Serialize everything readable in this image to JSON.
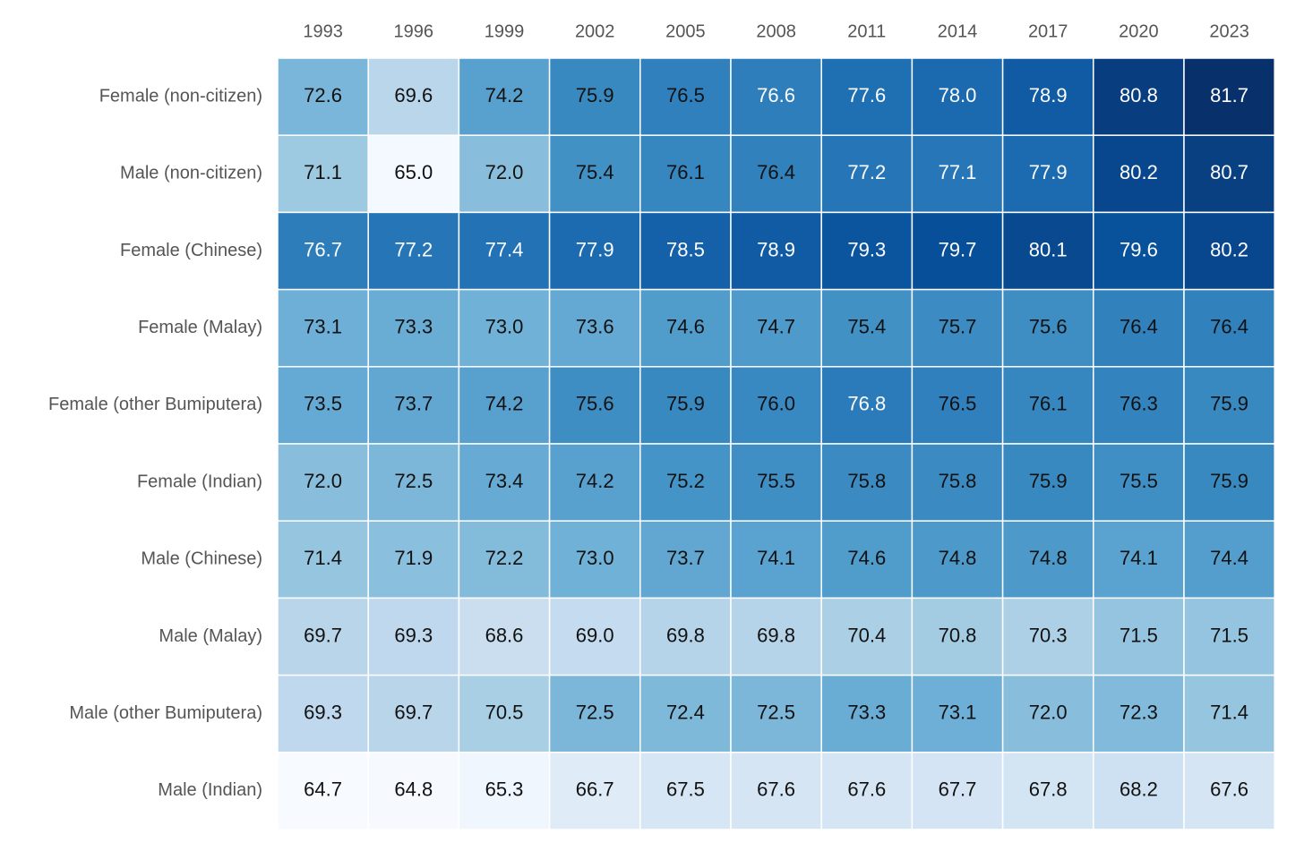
{
  "chart_data": {
    "type": "heatmap",
    "title": "",
    "xlabel": "",
    "ylabel": "",
    "columns": [
      "1993",
      "1996",
      "1999",
      "2002",
      "2005",
      "2008",
      "2011",
      "2014",
      "2017",
      "2020",
      "2023"
    ],
    "rows": [
      "Female (non-citizen)",
      "Male (non-citizen)",
      "Female (Chinese)",
      "Female (Malay)",
      "Female (other Bumiputera)",
      "Female (Indian)",
      "Male (Chinese)",
      "Male (Malay)",
      "Male (other Bumiputera)",
      "Male (Indian)"
    ],
    "values": [
      [
        72.6,
        69.6,
        74.2,
        75.9,
        76.5,
        76.6,
        77.6,
        78.0,
        78.9,
        80.8,
        81.7
      ],
      [
        71.1,
        65.0,
        72.0,
        75.4,
        76.1,
        76.4,
        77.2,
        77.1,
        77.9,
        80.2,
        80.7
      ],
      [
        76.7,
        77.2,
        77.4,
        77.9,
        78.5,
        78.9,
        79.3,
        79.7,
        80.1,
        79.6,
        80.2
      ],
      [
        73.1,
        73.3,
        73.0,
        73.6,
        74.6,
        74.7,
        75.4,
        75.7,
        75.6,
        76.4,
        76.4
      ],
      [
        73.5,
        73.7,
        74.2,
        75.6,
        75.9,
        76.0,
        76.8,
        76.5,
        76.1,
        76.3,
        75.9
      ],
      [
        72.0,
        72.5,
        73.4,
        74.2,
        75.2,
        75.5,
        75.8,
        75.8,
        75.9,
        75.5,
        75.9
      ],
      [
        71.4,
        71.9,
        72.2,
        73.0,
        73.7,
        74.1,
        74.6,
        74.8,
        74.8,
        74.1,
        74.4
      ],
      [
        69.7,
        69.3,
        68.6,
        69.0,
        69.8,
        69.8,
        70.4,
        70.8,
        70.3,
        71.5,
        71.5
      ],
      [
        69.3,
        69.7,
        70.5,
        72.5,
        72.4,
        72.5,
        73.3,
        73.1,
        72.0,
        72.3,
        71.4
      ],
      [
        64.7,
        64.8,
        65.3,
        66.7,
        67.5,
        67.6,
        67.6,
        67.7,
        67.8,
        68.2,
        67.6
      ]
    ],
    "value_range": [
      64.7,
      81.7
    ],
    "colormap": [
      "#f7fbff",
      "#deebf7",
      "#c6dbef",
      "#9ecae1",
      "#6baed6",
      "#4292c6",
      "#2171b5",
      "#08519c",
      "#08306b"
    ],
    "legend": "none",
    "grid": false
  }
}
